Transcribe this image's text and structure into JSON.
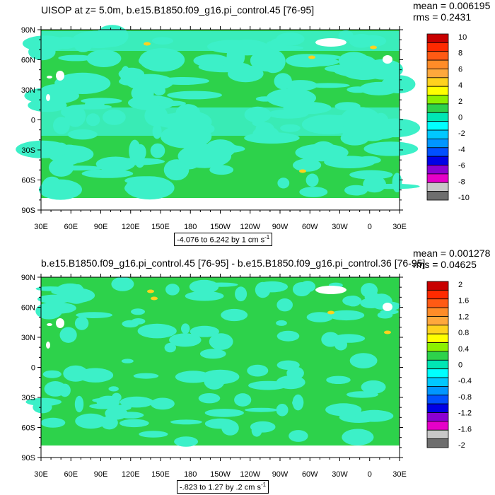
{
  "chart_data": [
    {
      "type": "heatmap",
      "title": "UISOP at z=   5.0m, b.e15.B1850.f09_g16.pi_control.45 [76-95]",
      "mean_label": "mean = 0.006195",
      "rms_label": "rms = 0.2431",
      "range_label": "-4.076 to 6.242 by 1 cm s",
      "range_sup": "-1",
      "y_ticks": [
        "90N",
        "60N",
        "30N",
        "0",
        "30S",
        "60S",
        "90S"
      ],
      "x_ticks": [
        "30E",
        "60E",
        "90E",
        "120E",
        "150E",
        "180",
        "150W",
        "120W",
        "90W",
        "60W",
        "30W",
        "0",
        "30E"
      ],
      "colorbar_labels": [
        "10",
        "8",
        "6",
        "4",
        "2",
        "0",
        "-2",
        "-4",
        "-6",
        "-8",
        "-10"
      ],
      "background_value": 0.1
    },
    {
      "type": "heatmap",
      "title": "b.e15.B1850.f09_g16.pi_control.45 [76-95] - b.e15.B1850.f09_g16.pi_control.36 [76-95]",
      "mean_label": "mean = 0.001278",
      "rms_label": "rms = 0.04625",
      "range_label": "-.823 to 1.27 by .2 cm s",
      "range_sup": "-1",
      "y_ticks": [
        "90N",
        "60N",
        "30N",
        "0",
        "30S",
        "60S",
        "90S"
      ],
      "x_ticks": [
        "30E",
        "60E",
        "90E",
        "120E",
        "150E",
        "180",
        "150W",
        "120W",
        "90W",
        "60W",
        "30W",
        "0",
        "30E"
      ],
      "colorbar_labels": [
        "2",
        "1.6",
        "1.2",
        "0.8",
        "0.4",
        "0",
        "-0.4",
        "-0.8",
        "-1.2",
        "-1.6",
        "-2"
      ],
      "background_value": 0.1
    }
  ],
  "palette": [
    "#c80000",
    "#ff2a00",
    "#ff5a14",
    "#ff8c28",
    "#ffa83c",
    "#ffd21e",
    "#ffff00",
    "#8cf000",
    "#2dd24b",
    "#00e6b4",
    "#00ffff",
    "#00c8ff",
    "#0096ff",
    "#0050ff",
    "#0000e6",
    "#8c00d2",
    "#e600c8",
    "#c8c8c8",
    "#6e6e6e"
  ],
  "colors": {
    "land": "#ffffff",
    "cyan_band": "#3cf0c8",
    "green_bg": "#2dd24b"
  }
}
